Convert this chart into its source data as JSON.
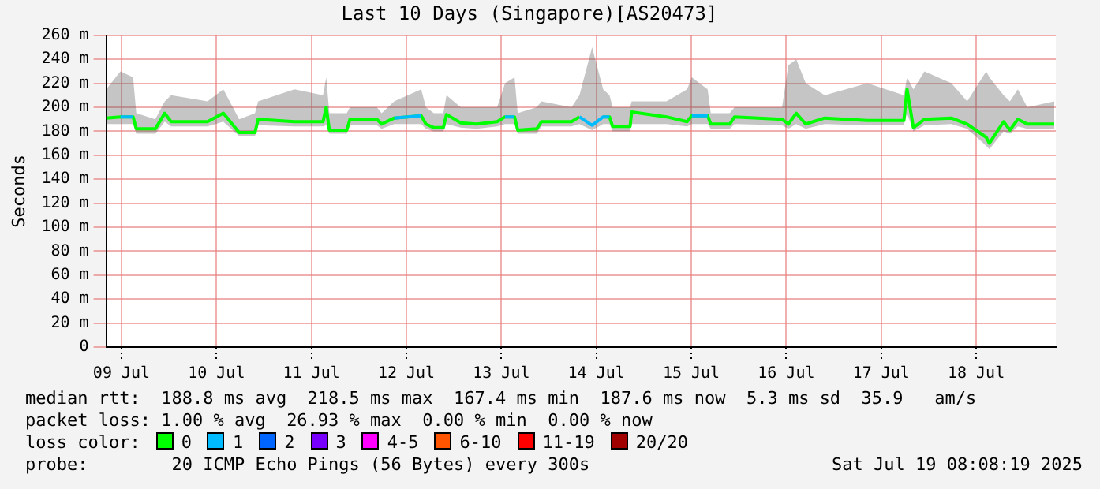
{
  "chart_data": {
    "type": "line",
    "title": "Last 10 Days (Singapore)[AS20473]",
    "ylabel": "Seconds",
    "legend_title": "loss color:",
    "legend": "bottom",
    "grid": true,
    "marker": "none",
    "x": [
      "2025-07-09T08:08",
      "2025-07-09T11:44",
      "2025-07-09T14:56",
      "2025-07-09T15:44",
      "2025-07-09T20:32",
      "2025-07-09T22:56",
      "2025-07-10T00:32",
      "2025-07-10T09:44",
      "2025-07-10T13:44",
      "2025-07-10T17:44",
      "2025-07-10T21:44",
      "2025-07-10T22:32",
      "2025-07-11T07:44",
      "2025-07-11T14:56",
      "2025-07-11T15:44",
      "2025-07-11T16:32",
      "2025-07-11T20:56",
      "2025-07-11T21:44",
      "2025-07-12T04:32",
      "2025-07-12T05:44",
      "2025-07-12T08:56",
      "2025-07-12T15:44",
      "2025-07-12T16:56",
      "2025-07-12T18:56",
      "2025-07-12T21:20",
      "2025-07-12T22:08",
      "2025-07-13T01:44",
      "2025-07-13T05:44",
      "2025-07-13T10:56",
      "2025-07-13T12:56",
      "2025-07-13T15:20",
      "2025-07-13T16:08",
      "2025-07-13T20:56",
      "2025-07-13T22:08",
      "2025-07-14T05:44",
      "2025-07-14T07:44",
      "2025-07-14T10:56",
      "2025-07-14T13:44",
      "2025-07-14T15:20",
      "2025-07-14T16:08",
      "2025-07-14T20:32",
      "2025-07-14T20:56",
      "2025-07-15T05:44",
      "2025-07-15T10:56",
      "2025-07-15T12:08",
      "2025-07-15T16:08",
      "2025-07-15T16:56",
      "2025-07-15T21:44",
      "2025-07-15T22:56",
      "2025-07-16T10:56",
      "2025-07-16T12:32",
      "2025-07-16T14:32",
      "2025-07-16T16:56",
      "2025-07-16T21:44",
      "2025-07-17T08:32",
      "2025-07-17T17:44",
      "2025-07-17T18:32",
      "2025-07-17T20:08",
      "2025-07-17T22:56",
      "2025-07-18T05:44",
      "2025-07-18T09:44",
      "2025-07-18T14:32",
      "2025-07-18T15:20",
      "2025-07-18T18:56",
      "2025-07-18T20:32",
      "2025-07-18T22:32",
      "2025-07-19T00:56",
      "2025-07-19T07:44"
    ],
    "series": [
      {
        "name": "0",
        "color": "#00ff00",
        "values": [
          191,
          192,
          192,
          182,
          182,
          195,
          188,
          188,
          195,
          179,
          179,
          190,
          188,
          188,
          200,
          181,
          181,
          190,
          190,
          186,
          191,
          193,
          186,
          183,
          183,
          194,
          187,
          186,
          188,
          192,
          192,
          181,
          182,
          188,
          188,
          192,
          null,
          192,
          192,
          184,
          184,
          196,
          192,
          188,
          193,
          193,
          186,
          186,
          192,
          190,
          186,
          195,
          186,
          191,
          189,
          189,
          215,
          183,
          190,
          191,
          186,
          175,
          170,
          188,
          181,
          190,
          186,
          186
        ],
        "lower": [
          186,
          186,
          186,
          178,
          178,
          188,
          184,
          184,
          188,
          176,
          176,
          185,
          184,
          184,
          185,
          178,
          178,
          185,
          185,
          182,
          186,
          186,
          182,
          180,
          180,
          186,
          183,
          182,
          184,
          186,
          186,
          178,
          178,
          184,
          184,
          186,
          181,
          186,
          186,
          180,
          180,
          186,
          186,
          184,
          186,
          186,
          182,
          182,
          186,
          185,
          182,
          186,
          182,
          186,
          185,
          185,
          195,
          180,
          185,
          186,
          182,
          168,
          165,
          180,
          178,
          184,
          182,
          182
        ],
        "upper": [
          215,
          230,
          225,
          195,
          190,
          205,
          210,
          205,
          215,
          190,
          195,
          205,
          215,
          210,
          225,
          195,
          195,
          200,
          200,
          195,
          205,
          215,
          200,
          195,
          195,
          210,
          200,
          200,
          200,
          220,
          225,
          195,
          200,
          205,
          200,
          210,
          250,
          215,
          210,
          200,
          200,
          205,
          205,
          215,
          225,
          215,
          195,
          195,
          200,
          200,
          235,
          240,
          220,
          210,
          220,
          210,
          225,
          215,
          230,
          220,
          205,
          230,
          225,
          210,
          205,
          215,
          200,
          205
        ]
      },
      {
        "name": "1",
        "color": "#00bbff",
        "values": [
          null,
          192,
          192,
          null,
          null,
          null,
          null,
          null,
          null,
          null,
          null,
          null,
          null,
          null,
          null,
          null,
          null,
          null,
          null,
          null,
          191,
          193,
          null,
          null,
          null,
          null,
          null,
          null,
          null,
          192,
          192,
          null,
          null,
          null,
          null,
          192,
          185,
          192,
          192,
          null,
          null,
          null,
          null,
          null,
          193,
          193,
          null,
          null,
          null,
          null,
          null,
          null,
          null,
          null,
          null,
          null,
          null,
          null,
          null,
          null,
          null,
          null,
          null,
          null,
          null,
          null,
          null,
          null
        ]
      },
      {
        "name": "2",
        "color": "#0066ff",
        "values": [
          null,
          null,
          null,
          null,
          null,
          null,
          null,
          null,
          null,
          null,
          null,
          null,
          null,
          null,
          null,
          null,
          null,
          null,
          null,
          null,
          null,
          null,
          null,
          null,
          null,
          null,
          null,
          null,
          null,
          null,
          null,
          null,
          null,
          null,
          null,
          null,
          null,
          null,
          null,
          null,
          null,
          null,
          null,
          null,
          null,
          null,
          null,
          null,
          null,
          null,
          null,
          null,
          null,
          null,
          null,
          null,
          null,
          null,
          null,
          null,
          null,
          null,
          null,
          null,
          null,
          null,
          null,
          null
        ]
      },
      {
        "name": "3",
        "color": "#7700ff",
        "values": [
          null,
          null,
          null,
          null,
          null,
          null,
          null,
          null,
          null,
          null,
          null,
          null,
          null,
          null,
          null,
          null,
          null,
          null,
          null,
          null,
          null,
          null,
          null,
          null,
          null,
          null,
          null,
          null,
          null,
          null,
          null,
          null,
          null,
          null,
          null,
          null,
          null,
          null,
          null,
          null,
          null,
          null,
          null,
          null,
          null,
          null,
          null,
          null,
          null,
          null,
          null,
          null,
          null,
          null,
          null,
          null,
          null,
          null,
          null,
          null,
          null,
          null,
          null,
          null,
          null,
          null,
          null,
          null
        ]
      },
      {
        "name": "4-5",
        "color": "#ff00ff",
        "values": [
          null,
          null,
          null,
          null,
          null,
          null,
          null,
          null,
          null,
          null,
          null,
          null,
          null,
          null,
          null,
          null,
          null,
          null,
          null,
          null,
          null,
          null,
          null,
          null,
          null,
          null,
          null,
          null,
          null,
          null,
          null,
          null,
          null,
          null,
          null,
          null,
          null,
          null,
          null,
          null,
          null,
          null,
          null,
          null,
          null,
          null,
          null,
          null,
          null,
          null,
          null,
          null,
          null,
          null,
          null,
          null,
          null,
          null,
          null,
          null,
          null,
          null,
          null,
          null,
          null,
          null,
          null,
          null
        ]
      },
      {
        "name": "6-10",
        "color": "#ff5500",
        "values": [
          null,
          null,
          null,
          null,
          null,
          null,
          null,
          null,
          null,
          null,
          null,
          null,
          null,
          null,
          null,
          null,
          null,
          null,
          null,
          null,
          null,
          null,
          null,
          null,
          null,
          null,
          null,
          null,
          null,
          null,
          null,
          null,
          null,
          null,
          null,
          null,
          null,
          null,
          null,
          null,
          null,
          null,
          null,
          null,
          null,
          null,
          null,
          null,
          null,
          null,
          null,
          null,
          null,
          null,
          null,
          null,
          null,
          null,
          null,
          null,
          null,
          null,
          null,
          null,
          null,
          null,
          null,
          null
        ]
      },
      {
        "name": "11-19",
        "color": "#ff0000",
        "values": [
          null,
          null,
          null,
          null,
          null,
          null,
          null,
          null,
          null,
          null,
          null,
          null,
          null,
          null,
          null,
          null,
          null,
          null,
          null,
          null,
          null,
          null,
          null,
          null,
          null,
          null,
          null,
          null,
          null,
          null,
          null,
          null,
          null,
          null,
          null,
          null,
          null,
          null,
          null,
          null,
          null,
          null,
          null,
          null,
          null,
          null,
          null,
          null,
          null,
          null,
          null,
          null,
          null,
          null,
          null,
          null,
          null,
          null,
          null,
          null,
          null,
          null,
          null,
          null,
          null,
          null,
          null,
          null
        ]
      },
      {
        "name": "20/20",
        "color": "#a10000",
        "values": [
          null,
          null,
          null,
          null,
          null,
          null,
          null,
          null,
          null,
          null,
          null,
          null,
          null,
          null,
          null,
          null,
          null,
          null,
          null,
          null,
          null,
          null,
          null,
          null,
          null,
          null,
          null,
          null,
          null,
          null,
          null,
          null,
          null,
          null,
          null,
          null,
          null,
          null,
          null,
          null,
          null,
          null,
          null,
          null,
          null,
          null,
          null,
          null,
          null,
          null,
          null,
          null,
          null,
          null,
          null,
          null,
          null,
          null,
          null,
          null,
          null,
          null,
          null,
          null,
          null,
          null,
          null,
          null
        ]
      }
    ],
    "xlim": [
      "2025-07-09T08:08",
      "2025-07-19T08:08"
    ],
    "xticks": [
      {
        "value": "2025-07-09T12:00",
        "label": "09 Jul"
      },
      {
        "value": "2025-07-10T12:00",
        "label": "10 Jul"
      },
      {
        "value": "2025-07-11T12:00",
        "label": "11 Jul"
      },
      {
        "value": "2025-07-12T12:00",
        "label": "12 Jul"
      },
      {
        "value": "2025-07-13T12:00",
        "label": "13 Jul"
      },
      {
        "value": "2025-07-14T12:00",
        "label": "14 Jul"
      },
      {
        "value": "2025-07-15T12:00",
        "label": "15 Jul"
      },
      {
        "value": "2025-07-16T12:00",
        "label": "16 Jul"
      },
      {
        "value": "2025-07-17T12:00",
        "label": "17 Jul"
      },
      {
        "value": "2025-07-18T12:00",
        "label": "18 Jul"
      }
    ],
    "ylim": [
      0,
      260
    ],
    "yticks": [
      0,
      {
        "value": 20,
        "label": "20 m"
      },
      {
        "value": 40,
        "label": "40 m"
      },
      {
        "value": 60,
        "label": "60 m"
      },
      {
        "value": 80,
        "label": "80 m"
      },
      {
        "value": 100,
        "label": "100 m"
      },
      {
        "value": 120,
        "label": "120 m"
      },
      {
        "value": 140,
        "label": "140 m"
      },
      {
        "value": 160,
        "label": "160 m"
      },
      {
        "value": 180,
        "label": "180 m"
      },
      {
        "value": 200,
        "label": "200 m"
      },
      {
        "value": 220,
        "label": "220 m"
      },
      {
        "value": 240,
        "label": "240 m"
      },
      {
        "value": 260,
        "label": "260 m"
      }
    ],
    "annotations": [
      "median rtt:  188.8 ms avg  218.5 ms max  167.4 ms min  187.6 ms now  5.3 ms sd  35.9   am/s",
      "packet loss: 1.00 % avg  26.93 % max  0.00 % min  0.00 % now",
      "probe:        20 ICMP Echo Pings (56 Bytes) every 300s",
      "Sat Jul 19 08:08:19 2025"
    ]
  }
}
